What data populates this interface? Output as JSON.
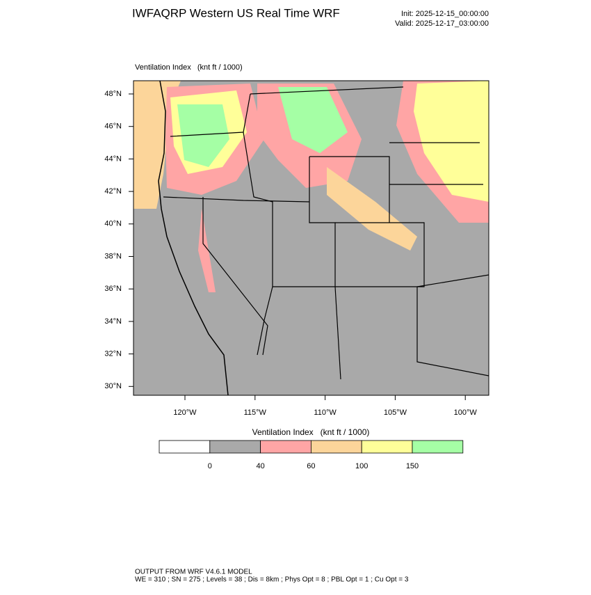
{
  "header": {
    "title": "IWFAQRP Western US Real Time WRF",
    "init": "Init: 2025-12-15_00:00:00",
    "valid": "Valid: 2025-12-17_03:00:00"
  },
  "map": {
    "label": "Ventilation Index   (knt ft / 1000)",
    "lat_labels": [
      "48°N",
      "46°N",
      "44°N",
      "42°N",
      "40°N",
      "38°N",
      "36°N",
      "34°N",
      "32°N",
      "30°N"
    ],
    "lon_labels": [
      "120°W",
      "115°W",
      "110°W",
      "105°W",
      "100°W"
    ]
  },
  "colorbar": {
    "title": "Ventilation Index   (knt ft / 1000)",
    "colors": [
      "#ffffff",
      "#a9a9a9",
      "#ffa5a5",
      "#fcd59a",
      "#ffff99",
      "#a5ffa5"
    ],
    "ticks": [
      0,
      40,
      60,
      100,
      150
    ]
  },
  "footer": {
    "line1": "OUTPUT FROM WRF V4.6.1 MODEL",
    "line2": "WE = 310 ; SN = 275 ; Levels = 38 ; Dis = 8km ; Phys Opt = 8 ; PBL Opt = 1 ; Cu Opt = 3"
  }
}
